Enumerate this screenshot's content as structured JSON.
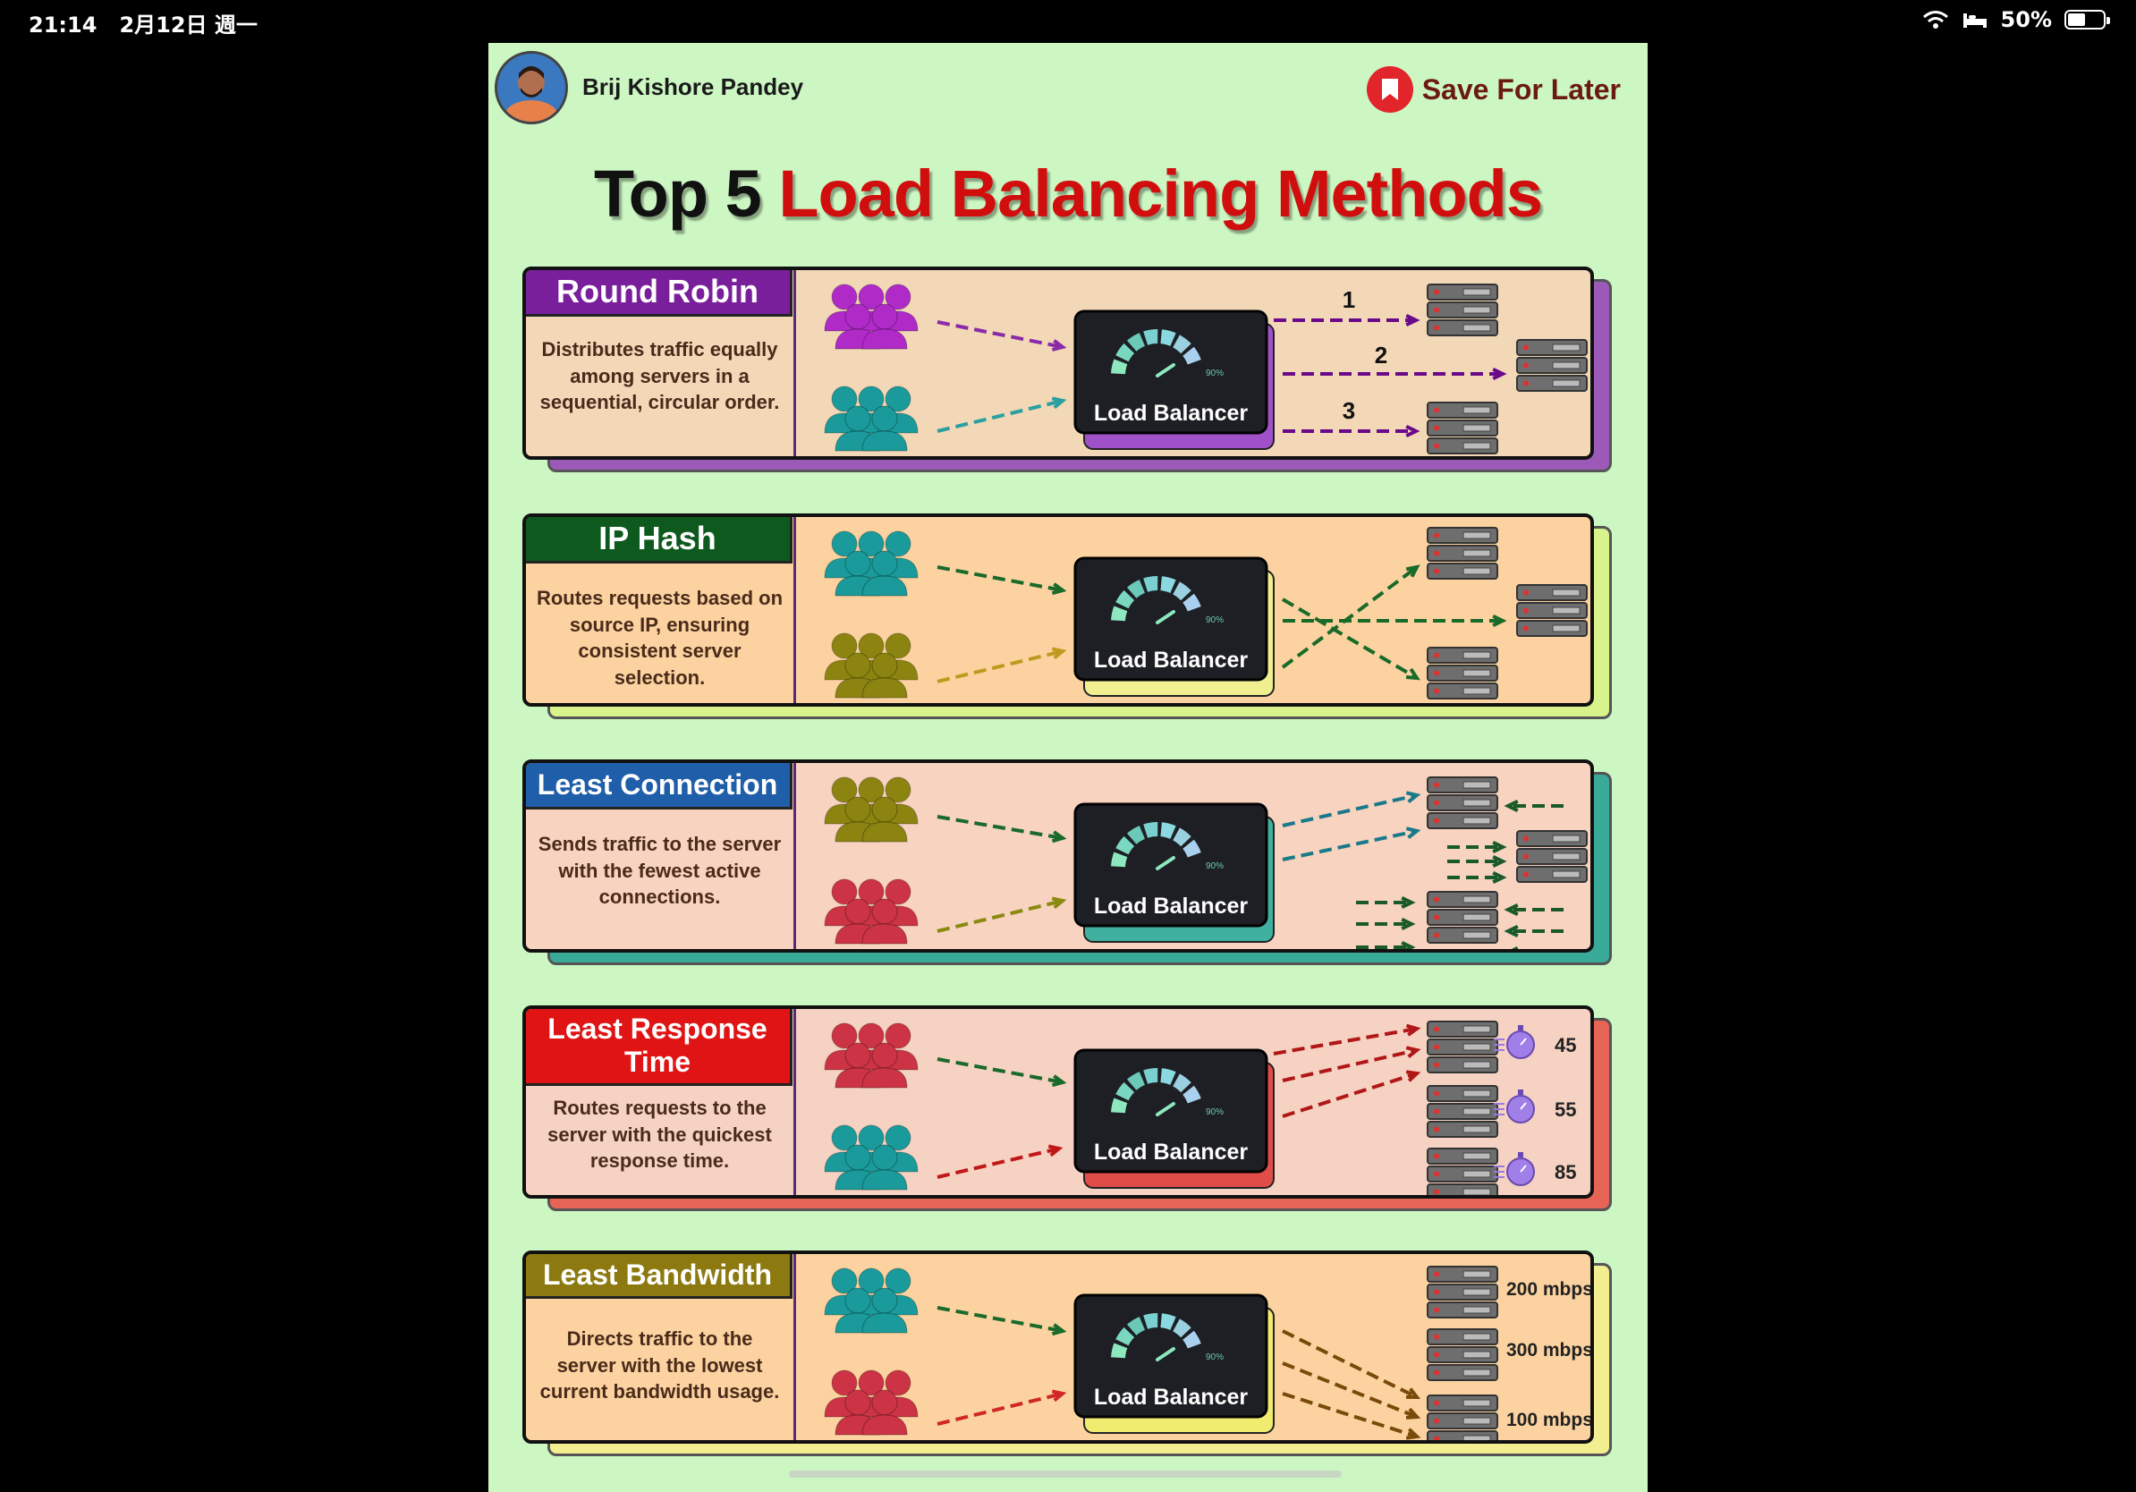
{
  "status_bar": {
    "time": "21:14",
    "date": "2月12日 週一",
    "battery": "50%",
    "battery_level": 0.5
  },
  "header": {
    "author": "Brij Kishore Pandey",
    "save_label": "Save For Later",
    "title_part1": "Top 5 ",
    "title_part2": "Load Balancing Methods"
  },
  "colors": {
    "purple": "#7a1f9c",
    "green": "#0e5a1e",
    "blue": "#1f5ea8",
    "red": "#e01414",
    "olive": "#8c7a10",
    "magenta_users": "#b02ac8",
    "teal_users": "#1a9a9a",
    "olive_users": "#8c8410",
    "red_users": "#cc3344"
  },
  "methods": [
    {
      "name": "Round Robin",
      "description": "Distributes traffic equally among servers in a sequential, circular order.",
      "lb_label": "Load Balancer",
      "gauge": "90%",
      "route_labels": [
        "1",
        "2",
        "3"
      ],
      "icons": [
        "users-group-icon",
        "load-balancer-icon",
        "server-rack-icon"
      ]
    },
    {
      "name": "IP Hash",
      "description": "Routes requests based on source IP, ensuring consistent server selection.",
      "lb_label": "Load Balancer",
      "gauge": "90%"
    },
    {
      "name": "Least Connection",
      "description": "Sends traffic to the server with the fewest active connections.",
      "lb_label": "Load Balancer",
      "gauge": "90%"
    },
    {
      "name": "Least Response Time",
      "description": "Routes requests to the server with the quickest response time.",
      "lb_label": "Load Balancer",
      "gauge": "90%",
      "times": [
        "45",
        "55",
        "85"
      ]
    },
    {
      "name": "Least Bandwidth",
      "description": "Directs traffic to the server with the lowest current bandwidth usage.",
      "lb_label": "Load Balancer",
      "gauge": "90%",
      "bandwidths": [
        "200 mbps",
        "300 mbps",
        "100 mbps"
      ]
    }
  ]
}
